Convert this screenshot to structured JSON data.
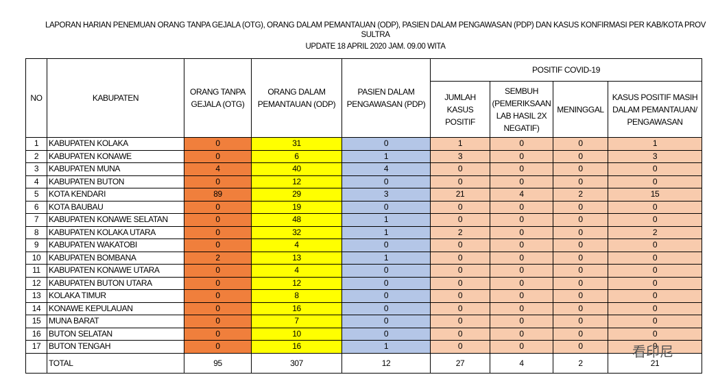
{
  "header": {
    "title": "LAPORAN HARIAN PENEMUAN ORANG TANPA GEJALA (OTG), ORANG DALAM PEMANTAUAN (ODP), PASIEN DALAM PENGAWASAN (PDP) DAN KASUS KONFIRMASI PER KAB/KOTA PROV SULTRA",
    "subtitle": "UPDATE 18 APRIL  2020 JAM. 09.00 WITA"
  },
  "table": {
    "columns": [
      "NO",
      "KABUPATEN",
      "ORANG TANPA GEJALA (OTG)",
      "ORANG DALAM PEMANTAUAN (ODP)",
      "PASIEN DALAM PENGAWASAN (PDP)"
    ],
    "group": "POSITIF COVID-19",
    "subcolumns": [
      "JUMLAH KASUS POSITIF",
      "SEMBUH (PEMERIKSAAN LAB HASIL 2X NEGATIF)",
      "MENINGGAL",
      "KASUS POSITIF MASIH DALAM PEMANTAUAN/ PENGAWASAN"
    ],
    "rows": [
      [
        1,
        "KABUPATEN KOLAKA",
        0,
        31,
        0,
        1,
        0,
        0,
        1
      ],
      [
        2,
        "KABUPATEN KONAWE",
        0,
        6,
        1,
        3,
        0,
        0,
        3
      ],
      [
        3,
        "KABUPATEN MUNA",
        4,
        40,
        4,
        0,
        0,
        0,
        0
      ],
      [
        4,
        "KABUPATEN BUTON",
        0,
        12,
        0,
        0,
        0,
        0,
        0
      ],
      [
        5,
        "KOTA KENDARI",
        89,
        29,
        3,
        21,
        4,
        2,
        15
      ],
      [
        6,
        "KOTA BAUBAU",
        0,
        19,
        0,
        0,
        0,
        0,
        0
      ],
      [
        7,
        "KABUPATEN KONAWE SELATAN",
        0,
        48,
        1,
        0,
        0,
        0,
        0
      ],
      [
        8,
        "KABUPATEN KOLAKA UTARA",
        0,
        32,
        1,
        2,
        0,
        0,
        2
      ],
      [
        9,
        "KABUPATEN WAKATOBI",
        0,
        4,
        0,
        0,
        0,
        0,
        0
      ],
      [
        10,
        "KABUPATEN BOMBANA",
        2,
        13,
        1,
        0,
        0,
        0,
        0
      ],
      [
        11,
        "KABUPATEN KONAWE UTARA",
        0,
        4,
        0,
        0,
        0,
        0,
        0
      ],
      [
        12,
        "KABUPATEN BUTON UTARA",
        0,
        12,
        0,
        0,
        0,
        0,
        0
      ],
      [
        13,
        "KOLAKA TIMUR",
        0,
        8,
        0,
        0,
        0,
        0,
        0
      ],
      [
        14,
        "KONAWE KEPULAUAN",
        0,
        16,
        0,
        0,
        0,
        0,
        0
      ],
      [
        15,
        "MUNA BARAT",
        0,
        7,
        0,
        0,
        0,
        0,
        0
      ],
      [
        16,
        "BUTON SELATAN",
        0,
        10,
        0,
        0,
        0,
        0,
        0
      ],
      [
        17,
        "BUTON TENGAH",
        0,
        16,
        1,
        0,
        0,
        0,
        0
      ]
    ],
    "total": [
      "TOTAL",
      95,
      307,
      12,
      27,
      4,
      2,
      21
    ]
  },
  "watermark": "看印尼"
}
